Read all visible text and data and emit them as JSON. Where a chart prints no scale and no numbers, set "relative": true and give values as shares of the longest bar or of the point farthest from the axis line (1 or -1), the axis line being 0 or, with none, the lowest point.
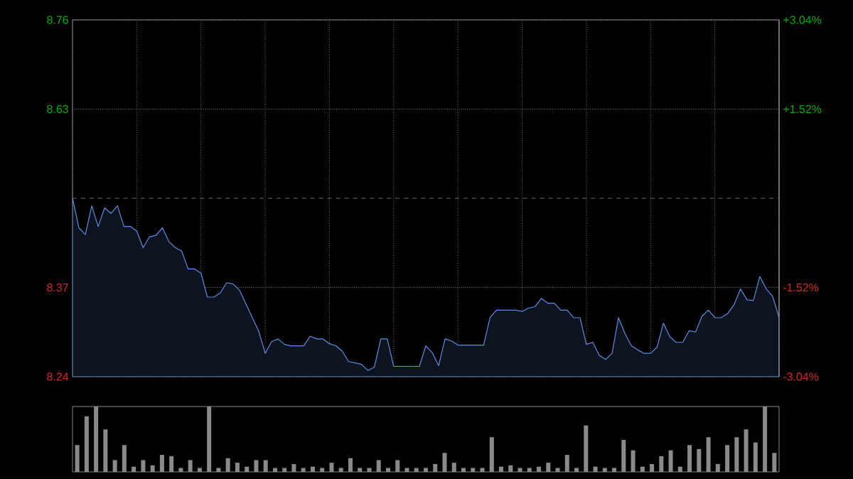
{
  "chart_data": [
    {
      "type": "area",
      "color": "#5b8ee6",
      "marker": "none",
      "line_style": "solid",
      "grid": true,
      "tick_labels": "y",
      "categories": [
        null,
        null,
        null,
        null,
        null,
        null,
        null,
        null,
        null,
        null,
        null,
        null,
        null,
        null,
        null,
        null,
        null,
        null,
        null,
        null,
        null,
        null,
        null,
        null,
        null,
        null,
        null,
        null,
        null,
        null,
        null,
        null,
        null,
        null,
        null,
        null,
        null,
        null,
        null,
        null,
        null,
        null,
        null,
        null,
        null,
        null,
        null,
        null,
        null,
        null,
        null,
        null,
        null,
        null,
        null,
        null,
        null,
        null,
        null,
        null,
        null,
        null,
        null,
        null,
        null,
        null,
        null,
        null,
        null,
        null,
        null,
        null,
        null,
        null,
        null,
        null,
        null,
        null,
        null,
        null,
        null,
        null,
        null,
        null,
        null,
        null,
        null,
        null,
        null,
        null,
        null,
        null,
        null,
        null,
        null,
        null,
        null,
        null,
        null,
        null,
        null,
        null,
        null,
        null,
        null,
        null,
        null,
        null,
        null,
        null,
        null
      ],
      "ylim": [
        8.24,
        8.76
      ],
      "yticks": [
        8.24,
        8.37,
        8.63,
        8.76
      ],
      "y2lim": [
        -3.04,
        3.04
      ],
      "y2ticks": [
        {
          "value": -3.04,
          "label": "-3.04%"
        },
        {
          "value": -1.52,
          "label": "-1.52%"
        },
        {
          "value": 1.52,
          "label": "+1.52%"
        },
        {
          "value": 3.04,
          "label": "+3.04%"
        }
      ],
      "ref_lines": [
        {
          "axis": "y",
          "value": 8.5,
          "color": "#888888",
          "line_style": "dashed"
        }
      ],
      "values": [
        8.5,
        8.457,
        8.447,
        8.489,
        8.459,
        8.486,
        8.478,
        8.489,
        8.459,
        8.459,
        8.452,
        8.428,
        8.444,
        8.446,
        8.457,
        8.437,
        8.428,
        8.423,
        8.397,
        8.397,
        8.391,
        8.356,
        8.356,
        8.362,
        8.377,
        8.375,
        8.366,
        8.346,
        8.326,
        8.306,
        8.274,
        8.291,
        8.295,
        8.287,
        8.285,
        8.285,
        8.285,
        8.299,
        8.295,
        8.295,
        8.288,
        8.285,
        8.277,
        8.262,
        8.26,
        8.258,
        8.249,
        8.254,
        8.295,
        8.295,
        8.255,
        8.255,
        8.255,
        8.255,
        8.255,
        8.285,
        8.275,
        8.256,
        8.295,
        8.292,
        8.286,
        8.286,
        8.286,
        8.286,
        8.286,
        8.326,
        8.337,
        8.337,
        8.337,
        8.337,
        8.335,
        8.34,
        8.342,
        8.354,
        8.347,
        8.347,
        8.337,
        8.337,
        8.326,
        8.326,
        8.287,
        8.29,
        8.271,
        8.265,
        8.274,
        8.326,
        8.303,
        8.285,
        8.279,
        8.274,
        8.274,
        8.283,
        8.318,
        8.298,
        8.29,
        8.29,
        8.307,
        8.305,
        8.328,
        8.337,
        8.326,
        8.326,
        8.332,
        8.345,
        8.368,
        8.352,
        8.351,
        8.386,
        8.368,
        8.357,
        8.326
      ]
    },
    {
      "type": "bar",
      "color": "#8a8a8a",
      "relative": true,
      "categories": [
        null,
        null,
        null,
        null,
        null,
        null,
        null,
        null,
        null,
        null,
        null,
        null,
        null,
        null,
        null,
        null,
        null,
        null,
        null,
        null,
        null,
        null,
        null,
        null,
        null,
        null,
        null,
        null,
        null,
        null,
        null,
        null,
        null,
        null,
        null,
        null,
        null,
        null,
        null,
        null,
        null,
        null,
        null,
        null,
        null,
        null,
        null,
        null,
        null,
        null,
        null,
        null,
        null,
        null,
        null,
        null,
        null,
        null,
        null,
        null,
        null,
        null,
        null,
        null,
        null,
        null,
        null,
        null,
        null,
        null,
        null,
        null,
        null,
        null,
        null
      ],
      "values": [
        0.41,
        0.85,
        1.0,
        0.65,
        0.18,
        0.41,
        0.08,
        0.18,
        0.1,
        0.26,
        0.24,
        0.06,
        0.18,
        0.06,
        1.0,
        0.06,
        0.21,
        0.14,
        0.08,
        0.18,
        0.18,
        0.06,
        0.06,
        0.12,
        0.06,
        0.08,
        0.06,
        0.14,
        0.06,
        0.21,
        0.06,
        0.06,
        0.18,
        0.06,
        0.18,
        0.06,
        0.06,
        0.06,
        0.12,
        0.29,
        0.14,
        0.06,
        0.06,
        0.06,
        0.53,
        0.08,
        0.1,
        0.06,
        0.06,
        0.08,
        0.14,
        0.06,
        0.26,
        0.06,
        0.71,
        0.08,
        0.06,
        0.06,
        0.49,
        0.33,
        0.08,
        0.12,
        0.24,
        0.33,
        0.08,
        0.41,
        0.35,
        0.53,
        0.12,
        0.41,
        0.53,
        0.65,
        0.45,
        1.0,
        0.29
      ]
    }
  ]
}
